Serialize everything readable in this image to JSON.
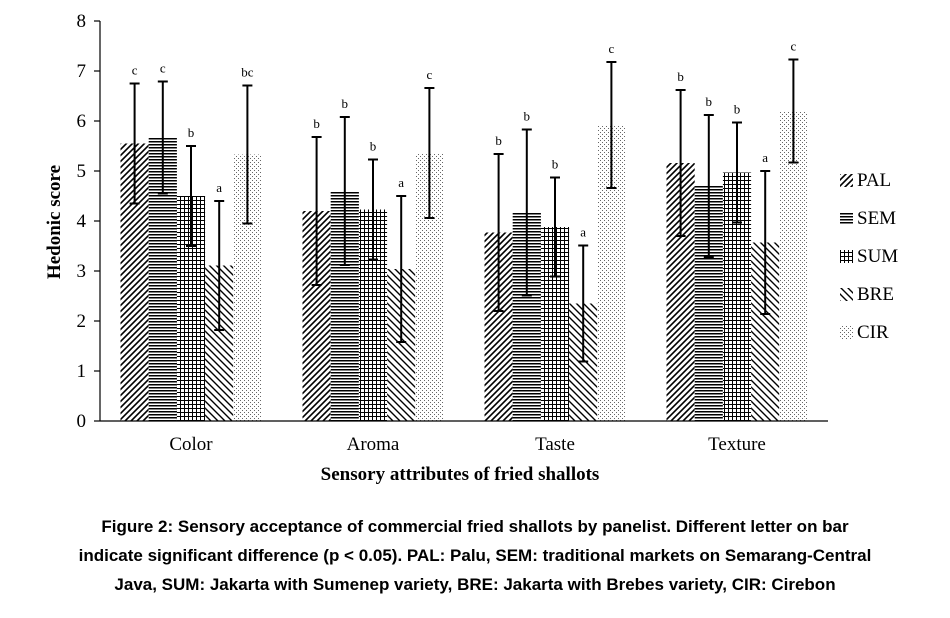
{
  "chart_data": {
    "type": "bar",
    "xlabel": "Sensory attributes of fried shallots",
    "ylabel": "Hedonic score",
    "ylim": [
      0,
      8
    ],
    "yticks": [
      "0",
      "1",
      "2",
      "3",
      "4",
      "5",
      "6",
      "7",
      "8"
    ],
    "categories": [
      "Color",
      "Aroma",
      "Taste",
      "Texture"
    ],
    "grid": false,
    "legend_position": "right",
    "error_bars": true,
    "series": [
      {
        "name": "PAL",
        "pattern": "diagonal-forward",
        "values": [
          5.55,
          4.2,
          3.77,
          5.16
        ],
        "errors": [
          1.2,
          1.48,
          1.57,
          1.46
        ],
        "significance": [
          "c",
          "b",
          "b",
          "b"
        ]
      },
      {
        "name": "SEM",
        "pattern": "horizontal-lines",
        "values": [
          5.67,
          4.6,
          4.17,
          4.7
        ],
        "errors": [
          1.12,
          1.48,
          1.66,
          1.42
        ],
        "significance": [
          "c",
          "b",
          "b",
          "b"
        ]
      },
      {
        "name": "SUM",
        "pattern": "grid",
        "values": [
          4.5,
          4.23,
          3.88,
          4.97
        ],
        "errors": [
          1.0,
          1.0,
          0.99,
          1.0
        ],
        "significance": [
          "b",
          "b",
          "b",
          "b"
        ]
      },
      {
        "name": "BRE",
        "pattern": "diagonal-backward",
        "values": [
          3.11,
          3.04,
          2.35,
          3.57
        ],
        "errors": [
          1.29,
          1.46,
          1.16,
          1.43
        ],
        "significance": [
          "a",
          "a",
          "a",
          "a"
        ]
      },
      {
        "name": "CIR",
        "pattern": "dots",
        "values": [
          5.33,
          5.36,
          5.92,
          6.2
        ],
        "errors": [
          1.38,
          1.3,
          1.26,
          1.03
        ],
        "significance": [
          "bc",
          "c",
          "c",
          "c"
        ]
      }
    ]
  },
  "caption": {
    "line1": "Figure 2: Sensory acceptance of commercial fried shallots by panelist. Different letter on bar",
    "line2": "indicate significant difference (p < 0.05). PAL: Palu, SEM: traditional markets on Semarang-Central",
    "line3": "Java, SUM: Jakarta with Sumenep variety, BRE: Jakarta with Brebes variety, CIR: Cirebon"
  }
}
